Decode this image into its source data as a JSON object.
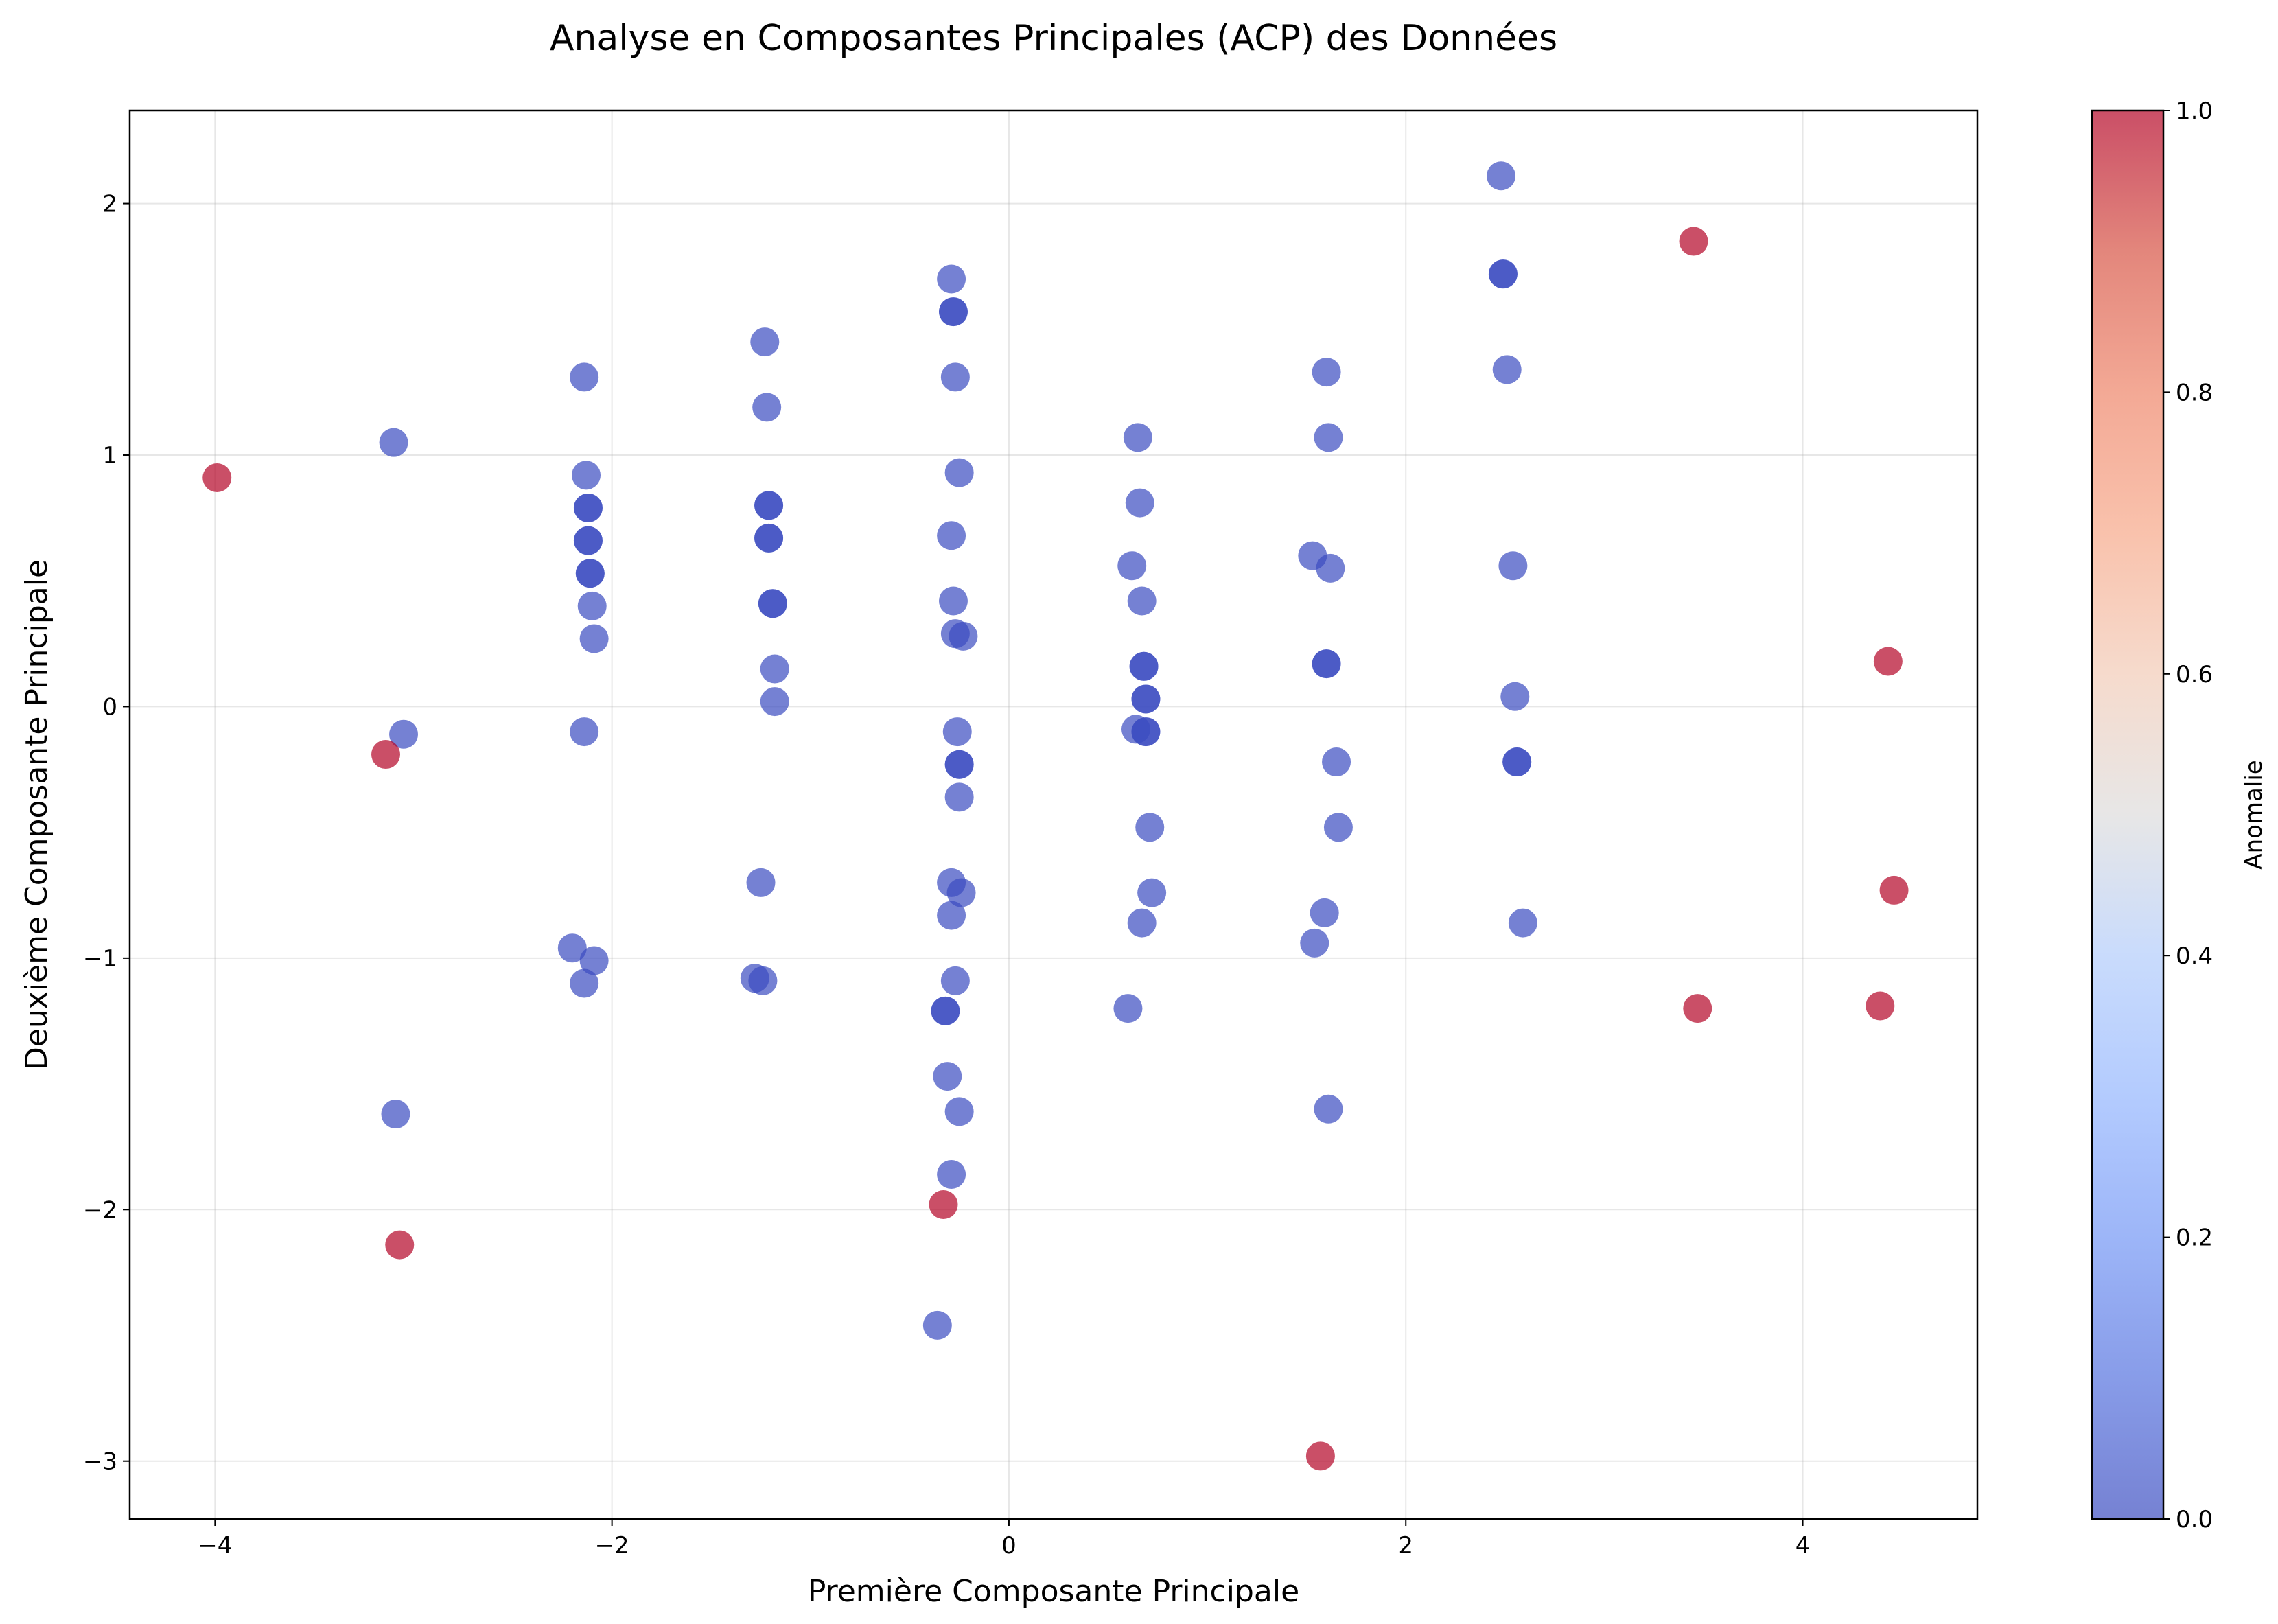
{
  "chart_data": {
    "type": "scatter",
    "title": "Analyse en Composantes Principales (ACP) des Données",
    "xlabel": "Première Composante Principale",
    "ylabel": "Deuxième Composante Principale",
    "xlim": [
      -4.43,
      4.88
    ],
    "ylim": [
      -3.23,
      2.37
    ],
    "xticks": [
      -4,
      -2,
      0,
      2,
      4
    ],
    "yticks": [
      -3,
      -2,
      -1,
      0,
      1,
      2
    ],
    "xtick_labels": [
      "−4",
      "−2",
      "0",
      "2",
      "4"
    ],
    "ytick_labels": [
      "−3",
      "−2",
      "−1",
      "0",
      "1",
      "2"
    ],
    "grid": true,
    "colormap": "coolwarm",
    "colorbar": {
      "label": "Anomalie",
      "range": [
        0,
        1
      ],
      "ticks": [
        0.0,
        0.2,
        0.4,
        0.6,
        0.8,
        1.0
      ],
      "tick_labels": [
        "0.0",
        "0.2",
        "0.4",
        "0.6",
        "0.8",
        "1.0"
      ]
    },
    "colors": {
      "normal": "#3b4cc0",
      "anomaly": "#b40426"
    },
    "points": [
      {
        "x": -3.1,
        "y": 1.05,
        "anomalie": 0
      },
      {
        "x": -3.05,
        "y": -0.11,
        "anomalie": 0
      },
      {
        "x": -3.09,
        "y": -1.62,
        "anomalie": 0
      },
      {
        "x": -2.14,
        "y": 1.31,
        "anomalie": 0
      },
      {
        "x": -2.13,
        "y": 0.92,
        "anomalie": 0
      },
      {
        "x": -2.12,
        "y": 0.79,
        "anomalie": 0
      },
      {
        "x": -2.12,
        "y": 0.79,
        "anomalie": 0
      },
      {
        "x": -2.12,
        "y": 0.66,
        "anomalie": 0
      },
      {
        "x": -2.12,
        "y": 0.66,
        "anomalie": 0
      },
      {
        "x": -2.11,
        "y": 0.53,
        "anomalie": 0
      },
      {
        "x": -2.11,
        "y": 0.53,
        "anomalie": 0
      },
      {
        "x": -2.1,
        "y": 0.4,
        "anomalie": 0
      },
      {
        "x": -2.09,
        "y": 0.27,
        "anomalie": 0
      },
      {
        "x": -2.14,
        "y": -0.1,
        "anomalie": 0
      },
      {
        "x": -2.2,
        "y": -0.96,
        "anomalie": 0
      },
      {
        "x": -2.09,
        "y": -1.01,
        "anomalie": 0
      },
      {
        "x": -2.14,
        "y": -1.1,
        "anomalie": 0
      },
      {
        "x": -1.23,
        "y": 1.45,
        "anomalie": 0
      },
      {
        "x": -1.22,
        "y": 1.19,
        "anomalie": 0
      },
      {
        "x": -1.21,
        "y": 0.8,
        "anomalie": 0
      },
      {
        "x": -1.21,
        "y": 0.8,
        "anomalie": 0
      },
      {
        "x": -1.21,
        "y": 0.67,
        "anomalie": 0
      },
      {
        "x": -1.21,
        "y": 0.67,
        "anomalie": 0
      },
      {
        "x": -1.19,
        "y": 0.41,
        "anomalie": 0
      },
      {
        "x": -1.19,
        "y": 0.41,
        "anomalie": 0
      },
      {
        "x": -1.18,
        "y": 0.15,
        "anomalie": 0
      },
      {
        "x": -1.18,
        "y": 0.02,
        "anomalie": 0
      },
      {
        "x": -1.25,
        "y": -0.7,
        "anomalie": 0
      },
      {
        "x": -1.28,
        "y": -1.08,
        "anomalie": 0
      },
      {
        "x": -1.24,
        "y": -1.09,
        "anomalie": 0
      },
      {
        "x": -0.29,
        "y": 1.7,
        "anomalie": 0
      },
      {
        "x": -0.28,
        "y": 1.57,
        "anomalie": 0
      },
      {
        "x": -0.28,
        "y": 1.57,
        "anomalie": 0
      },
      {
        "x": -0.27,
        "y": 1.31,
        "anomalie": 0
      },
      {
        "x": -0.25,
        "y": 0.93,
        "anomalie": 0
      },
      {
        "x": -0.29,
        "y": 0.68,
        "anomalie": 0
      },
      {
        "x": -0.28,
        "y": 0.42,
        "anomalie": 0
      },
      {
        "x": -0.27,
        "y": 0.29,
        "anomalie": 0
      },
      {
        "x": -0.23,
        "y": 0.28,
        "anomalie": 0
      },
      {
        "x": -0.26,
        "y": -0.1,
        "anomalie": 0
      },
      {
        "x": -0.25,
        "y": -0.23,
        "anomalie": 0
      },
      {
        "x": -0.25,
        "y": -0.23,
        "anomalie": 0
      },
      {
        "x": -0.25,
        "y": -0.36,
        "anomalie": 0
      },
      {
        "x": -0.29,
        "y": -0.7,
        "anomalie": 0
      },
      {
        "x": -0.24,
        "y": -0.74,
        "anomalie": 0
      },
      {
        "x": -0.29,
        "y": -0.83,
        "anomalie": 0
      },
      {
        "x": -0.27,
        "y": -1.09,
        "anomalie": 0
      },
      {
        "x": -0.32,
        "y": -1.21,
        "anomalie": 0
      },
      {
        "x": -0.32,
        "y": -1.21,
        "anomalie": 0
      },
      {
        "x": -0.31,
        "y": -1.47,
        "anomalie": 0
      },
      {
        "x": -0.25,
        "y": -1.61,
        "anomalie": 0
      },
      {
        "x": -0.29,
        "y": -1.86,
        "anomalie": 0
      },
      {
        "x": -0.36,
        "y": -2.46,
        "anomalie": 0
      },
      {
        "x": 0.65,
        "y": 1.07,
        "anomalie": 0
      },
      {
        "x": 0.66,
        "y": 0.81,
        "anomalie": 0
      },
      {
        "x": 0.62,
        "y": 0.56,
        "anomalie": 0
      },
      {
        "x": 0.67,
        "y": 0.42,
        "anomalie": 0
      },
      {
        "x": 0.68,
        "y": 0.16,
        "anomalie": 0
      },
      {
        "x": 0.68,
        "y": 0.16,
        "anomalie": 0
      },
      {
        "x": 0.69,
        "y": 0.03,
        "anomalie": 0
      },
      {
        "x": 0.69,
        "y": 0.03,
        "anomalie": 0
      },
      {
        "x": 0.64,
        "y": -0.09,
        "anomalie": 0
      },
      {
        "x": 0.69,
        "y": -0.1,
        "anomalie": 0
      },
      {
        "x": 0.69,
        "y": -0.1,
        "anomalie": 0
      },
      {
        "x": 0.71,
        "y": -0.48,
        "anomalie": 0
      },
      {
        "x": 0.72,
        "y": -0.74,
        "anomalie": 0
      },
      {
        "x": 0.67,
        "y": -0.86,
        "anomalie": 0
      },
      {
        "x": 0.6,
        "y": -1.2,
        "anomalie": 0
      },
      {
        "x": 1.6,
        "y": 1.33,
        "anomalie": 0
      },
      {
        "x": 1.61,
        "y": 1.07,
        "anomalie": 0
      },
      {
        "x": 1.53,
        "y": 0.6,
        "anomalie": 0
      },
      {
        "x": 1.62,
        "y": 0.55,
        "anomalie": 0
      },
      {
        "x": 1.6,
        "y": 0.17,
        "anomalie": 0
      },
      {
        "x": 1.6,
        "y": 0.17,
        "anomalie": 0
      },
      {
        "x": 1.65,
        "y": -0.22,
        "anomalie": 0
      },
      {
        "x": 1.66,
        "y": -0.48,
        "anomalie": 0
      },
      {
        "x": 1.59,
        "y": -0.82,
        "anomalie": 0
      },
      {
        "x": 1.54,
        "y": -0.94,
        "anomalie": 0
      },
      {
        "x": 1.61,
        "y": -1.6,
        "anomalie": 0
      },
      {
        "x": 2.48,
        "y": 2.11,
        "anomalie": 0
      },
      {
        "x": 2.49,
        "y": 1.72,
        "anomalie": 0
      },
      {
        "x": 2.49,
        "y": 1.72,
        "anomalie": 0
      },
      {
        "x": 2.51,
        "y": 1.34,
        "anomalie": 0
      },
      {
        "x": 2.54,
        "y": 0.56,
        "anomalie": 0
      },
      {
        "x": 2.55,
        "y": 0.04,
        "anomalie": 0
      },
      {
        "x": 2.56,
        "y": -0.22,
        "anomalie": 0
      },
      {
        "x": 2.56,
        "y": -0.22,
        "anomalie": 0
      },
      {
        "x": 2.59,
        "y": -0.86,
        "anomalie": 0
      },
      {
        "x": -3.99,
        "y": 0.91,
        "anomalie": 1
      },
      {
        "x": -3.14,
        "y": -0.19,
        "anomalie": 1
      },
      {
        "x": -3.07,
        "y": -2.14,
        "anomalie": 1
      },
      {
        "x": -0.33,
        "y": -1.98,
        "anomalie": 1
      },
      {
        "x": 1.57,
        "y": -2.98,
        "anomalie": 1
      },
      {
        "x": 3.45,
        "y": 1.85,
        "anomalie": 1
      },
      {
        "x": 3.47,
        "y": -1.2,
        "anomalie": 1
      },
      {
        "x": 4.43,
        "y": 0.18,
        "anomalie": 1
      },
      {
        "x": 4.46,
        "y": -0.73,
        "anomalie": 1
      },
      {
        "x": 4.39,
        "y": -1.19,
        "anomalie": 1
      }
    ]
  }
}
